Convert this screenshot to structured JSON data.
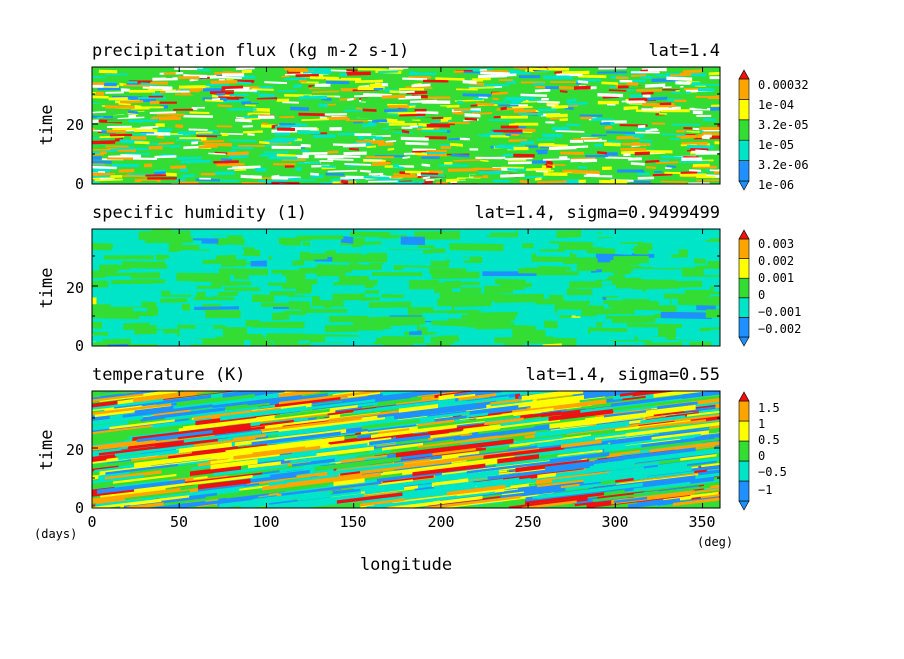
{
  "chart_data": [
    {
      "type": "heatmap",
      "title": "precipitation flux (kg m-2 s-1)",
      "subtitle": "lat=1.4",
      "ylabel": "time",
      "xlim": [
        0,
        360
      ],
      "ylim": [
        0,
        39
      ],
      "yticks": [
        "0",
        "20"
      ],
      "colorbar": {
        "labels": [
          "0.00032",
          "1e-04",
          "3.2e-05",
          "1e-05",
          "3.2e-06",
          "1e-06"
        ],
        "colors": [
          "#1e90ff",
          "#00e5c8",
          "#33dd33",
          "#ffff00",
          "#ffa500",
          "#ee1111"
        ]
      }
    },
    {
      "type": "heatmap",
      "title": "specific humidity (1)",
      "subtitle": "lat=1.4, sigma=0.9499499",
      "ylabel": "time",
      "xlim": [
        0,
        360
      ],
      "ylim": [
        0,
        39
      ],
      "yticks": [
        "0",
        "20"
      ],
      "colorbar": {
        "labels": [
          "0.003",
          "0.002",
          "0.001",
          "0",
          "−0.001",
          "−0.002"
        ],
        "colors": [
          "#1e90ff",
          "#1e90ff",
          "#00e5c8",
          "#33dd33",
          "#ffff00",
          "#ffa500",
          "#ee1111"
        ]
      }
    },
    {
      "type": "heatmap",
      "title": "temperature (K)",
      "subtitle": "lat=1.4, sigma=0.55",
      "ylabel": "time",
      "xlabel": "longitude",
      "xlim": [
        0,
        360
      ],
      "ylim": [
        0,
        39
      ],
      "yticks": [
        "0",
        "20"
      ],
      "xticks": [
        "0",
        "50",
        "100",
        "150",
        "200",
        "250",
        "300",
        "350"
      ],
      "x_unit": "(deg)",
      "y_unit": "(days)",
      "colorbar": {
        "labels": [
          "1.5",
          "1",
          "0.5",
          "0",
          "−0.5",
          "−1"
        ],
        "colors": [
          "#1e90ff",
          "#1e90ff",
          "#00e5c8",
          "#33dd33",
          "#ffff00",
          "#ffa500",
          "#ee1111"
        ]
      }
    }
  ]
}
